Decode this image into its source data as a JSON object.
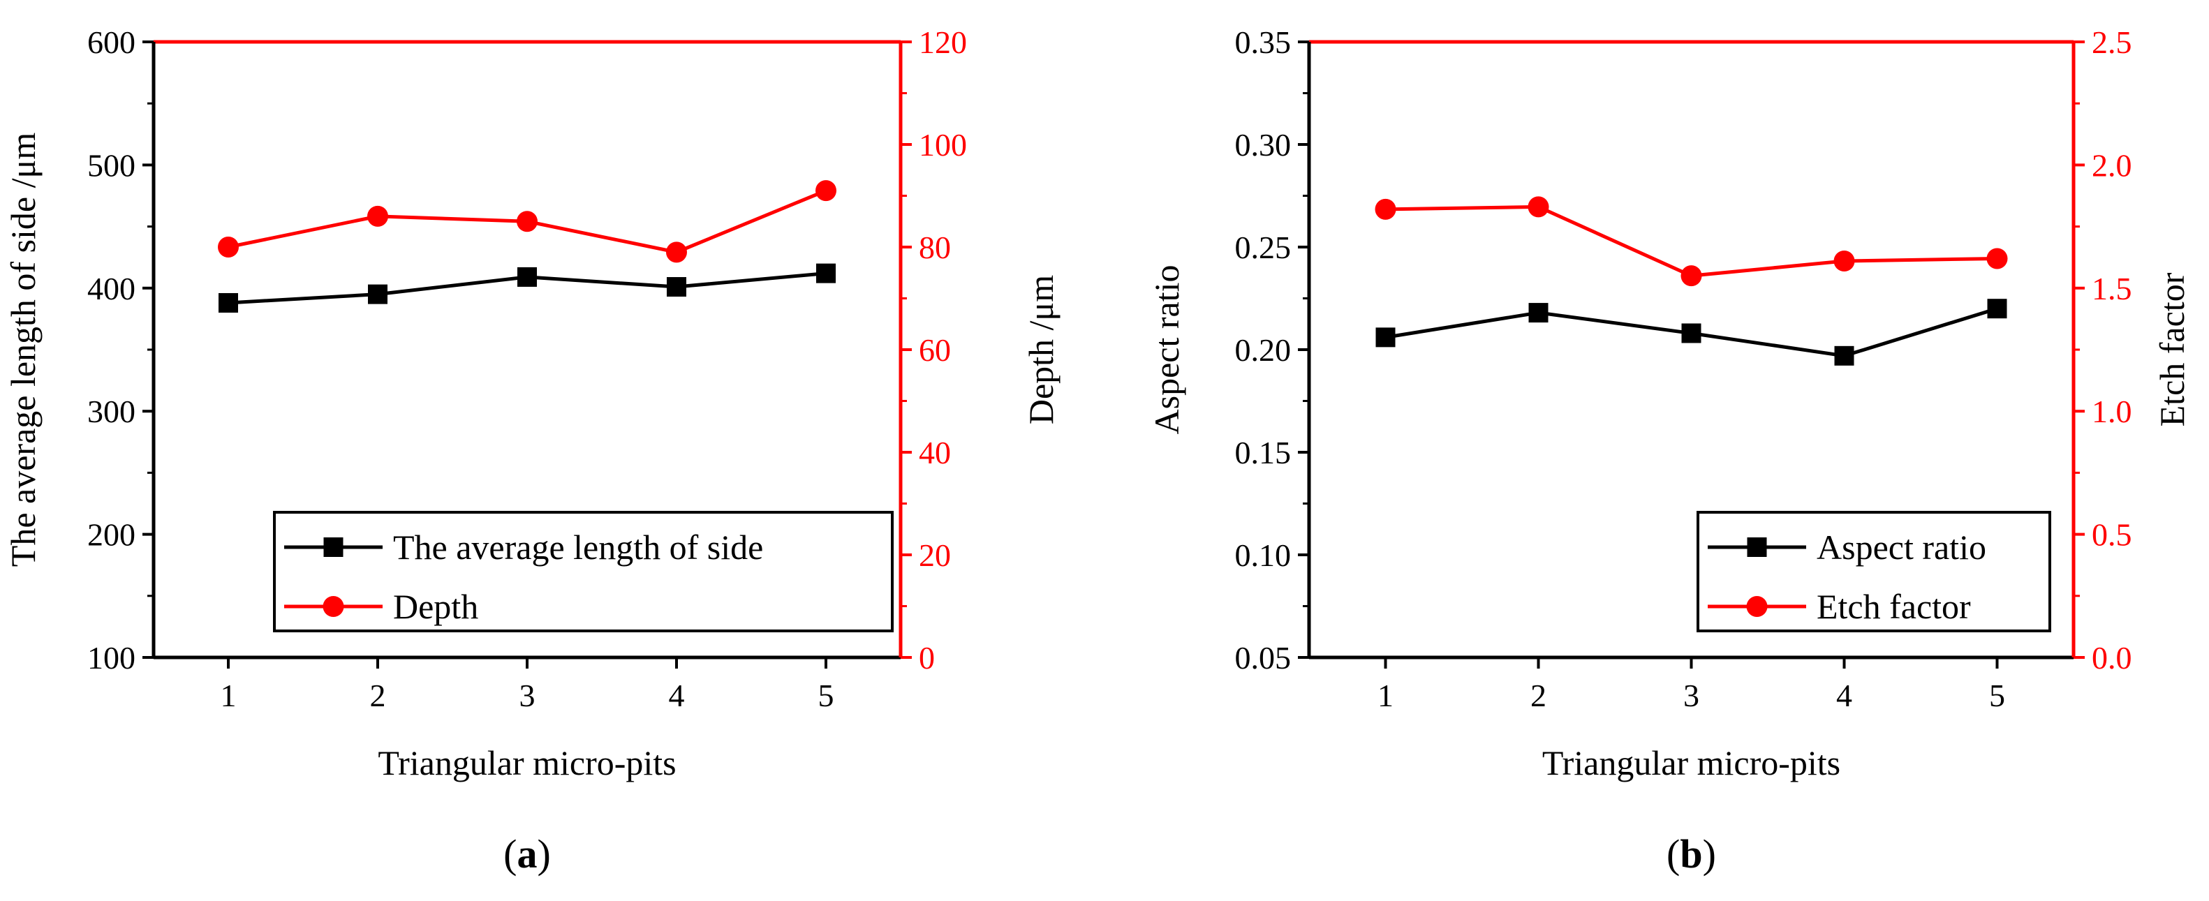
{
  "chart_data": [
    {
      "type": "line",
      "panel_label": "a",
      "xlabel": "Triangular micro-pits",
      "categories": [
        "1",
        "2",
        "3",
        "4",
        "5"
      ],
      "y_left": {
        "label": "The average length of side /μm",
        "range": [
          100,
          600
        ],
        "ticks": [
          100,
          200,
          300,
          400,
          500,
          600
        ],
        "tick_labels": [
          "100",
          "200",
          "300",
          "400",
          "500",
          "600"
        ],
        "color": "#000000"
      },
      "y_right": {
        "label": "Depth /μm",
        "range": [
          0,
          120
        ],
        "ticks": [
          0,
          20,
          40,
          60,
          80,
          100,
          120
        ],
        "tick_labels": [
          "0",
          "20",
          "40",
          "60",
          "80",
          "100",
          "120"
        ],
        "color": "#ff0000"
      },
      "series": [
        {
          "name": "The average length of side",
          "axis": "left",
          "marker": "square",
          "color": "#000000",
          "values": [
            388,
            395,
            409,
            401,
            412
          ]
        },
        {
          "name": "Depth",
          "axis": "right",
          "marker": "circle",
          "color": "#ff0000",
          "values": [
            80,
            86,
            85,
            79,
            91
          ]
        }
      ],
      "legend": "bottom-right"
    },
    {
      "type": "line",
      "panel_label": "b",
      "xlabel": "Triangular micro-pits",
      "categories": [
        "1",
        "2",
        "3",
        "4",
        "5"
      ],
      "y_left": {
        "label": "Aspect ratio",
        "range": [
          0.05,
          0.35
        ],
        "ticks": [
          0.05,
          0.1,
          0.15,
          0.2,
          0.25,
          0.3,
          0.35
        ],
        "tick_labels": [
          "0.05",
          "0.10",
          "0.15",
          "0.20",
          "0.25",
          "0.30",
          "0.35"
        ],
        "color": "#000000"
      },
      "y_right": {
        "label": "Etch factor",
        "range": [
          0.0,
          2.5
        ],
        "ticks": [
          0.0,
          0.5,
          1.0,
          1.5,
          2.0,
          2.5
        ],
        "tick_labels": [
          "0.0",
          "0.5",
          "1.0",
          "1.5",
          "2.0",
          "2.5"
        ],
        "color": "#ff0000"
      },
      "series": [
        {
          "name": "Aspect ratio",
          "axis": "left",
          "marker": "square",
          "color": "#000000",
          "values": [
            0.206,
            0.218,
            0.208,
            0.197,
            0.22
          ]
        },
        {
          "name": "Etch factor",
          "axis": "right",
          "marker": "circle",
          "color": "#ff0000",
          "values": [
            1.82,
            1.83,
            1.55,
            1.61,
            1.62
          ]
        }
      ],
      "legend": "bottom-right"
    }
  ]
}
